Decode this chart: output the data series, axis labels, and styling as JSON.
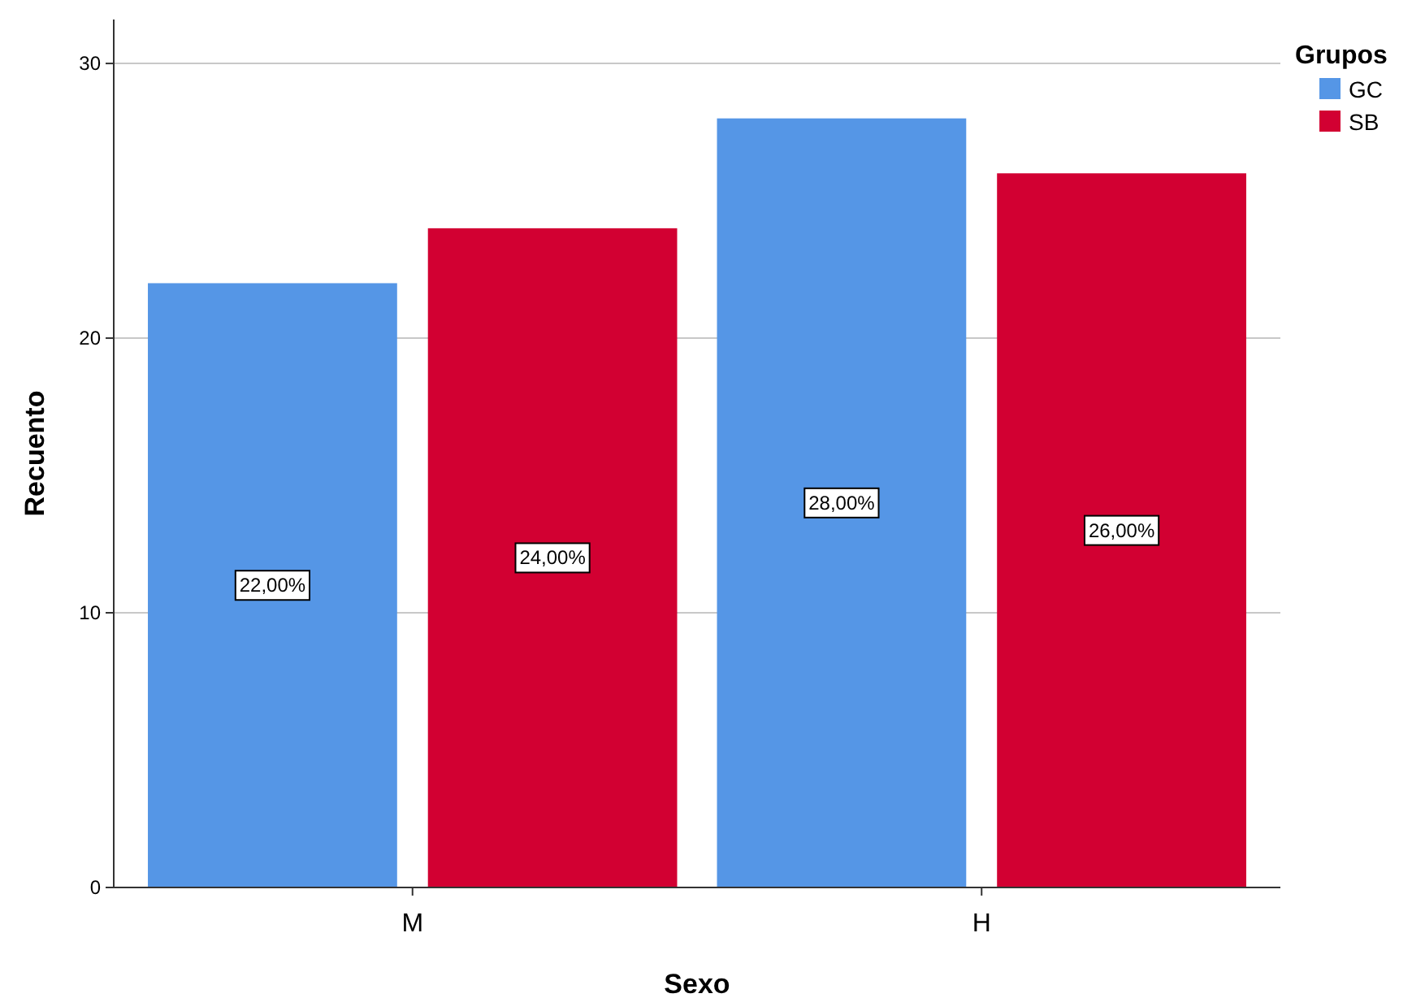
{
  "chart_data": {
    "type": "bar",
    "xlabel": "Sexo",
    "ylabel": "Recuento",
    "legend_title": "Grupos",
    "categories": [
      "M",
      "H"
    ],
    "series": [
      {
        "name": "GC",
        "color": "#5596e6",
        "values": [
          22,
          28
        ],
        "value_labels": [
          "22,00%",
          "28,00%"
        ]
      },
      {
        "name": "SB",
        "color": "#d20032",
        "values": [
          24,
          26
        ],
        "value_labels": [
          "24,00%",
          "26,00%"
        ]
      }
    ],
    "ylim": [
      0,
      31.6
    ],
    "yticks": [
      0,
      10,
      20,
      30
    ],
    "grid": "y",
    "legend": "top right"
  }
}
